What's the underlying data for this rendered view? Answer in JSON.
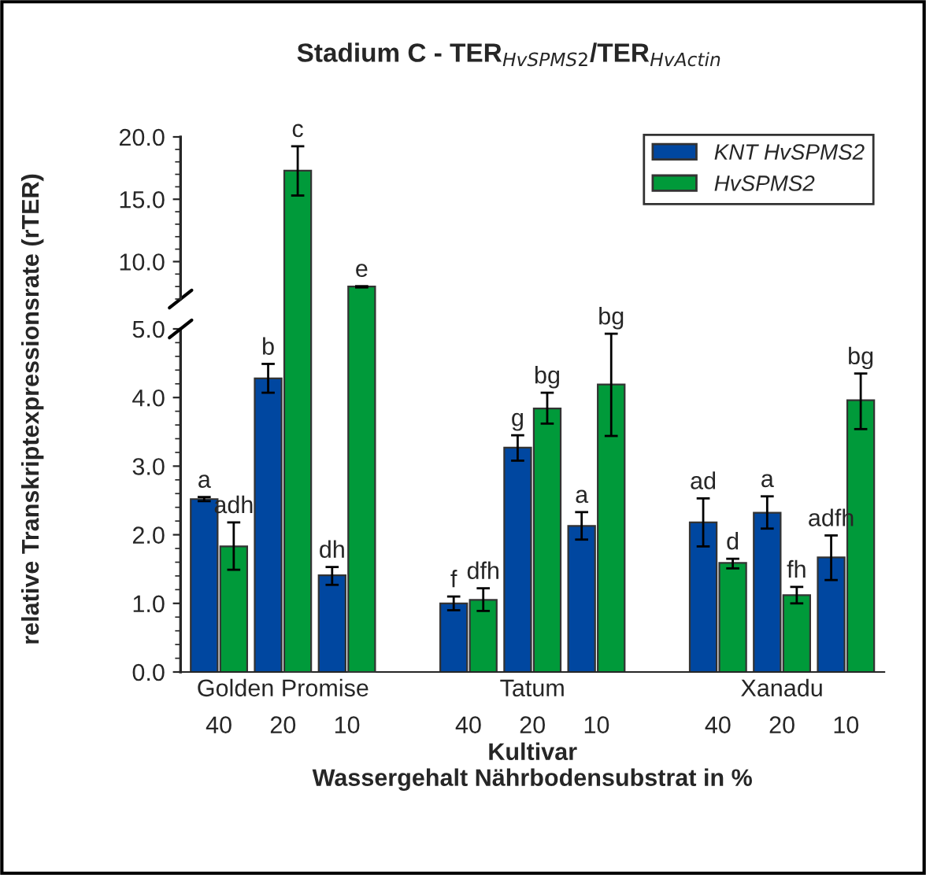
{
  "chart_data": [
    {
      "type": "bar",
      "title": "Stadium C - TER$_{HvSPMS2}$/TER$_{HvActin}$",
      "categories": [
        "40",
        "20",
        "10",
        "40",
        "20",
        "10",
        "40",
        "20",
        "10"
      ],
      "ylim": [
        7,
        20
      ],
      "yticks": [
        {
          "value": 10,
          "label": "10.0"
        },
        {
          "value": 15,
          "label": "15.0"
        },
        {
          "value": 20,
          "label": "20.0"
        }
      ],
      "tick_labels": "y",
      "legend": "top right",
      "grid": false,
      "series": [
        {
          "name": "KNT HvSPMS2",
          "color": "#0047a0",
          "values": [
            null,
            null,
            null,
            null,
            null,
            null,
            null,
            null,
            null
          ],
          "errors": [
            null,
            null,
            null,
            null,
            null,
            null,
            null,
            null,
            null
          ]
        },
        {
          "name": "HvSPMS2",
          "color": "#009a3a",
          "values": [
            null,
            17.3,
            8.0,
            null,
            null,
            null,
            null,
            null,
            null
          ],
          "errors": [
            null,
            [
              15.3,
              19.25
            ],
            [
              7.93,
              8.03
            ],
            null,
            null,
            null,
            null,
            null,
            null
          ],
          "value_labels": [
            null,
            "c",
            "e",
            null,
            null,
            null,
            null,
            null,
            null
          ]
        }
      ]
    },
    {
      "type": "bar",
      "ylabel": "relative Transkriptexpressionsrate (rTER)",
      "xlabel": "Kultivar\nWassergehalt Nährbodensubstrat in %",
      "categories": [
        "40",
        "20",
        "10",
        "40",
        "20",
        "10",
        "40",
        "20",
        "10"
      ],
      "ylim": [
        0,
        5
      ],
      "yticks": [
        {
          "value": 0,
          "label": "0.0"
        },
        {
          "value": 1,
          "label": "1.0"
        },
        {
          "value": 2,
          "label": "2.0"
        },
        {
          "value": 3,
          "label": "3.0"
        },
        {
          "value": 4,
          "label": "4.0"
        },
        {
          "value": 5,
          "label": "5.0"
        }
      ],
      "grid": false,
      "legend": false,
      "annotations": [
        "Golden Promise",
        "Tatum",
        "Xanadu"
      ],
      "series": [
        {
          "color": "#0047a0",
          "values": [
            2.52,
            4.28,
            1.41,
            1.0,
            3.27,
            2.13,
            2.18,
            2.32,
            1.67
          ],
          "errors": [
            [
              2.49,
              2.55
            ],
            [
              4.07,
              4.49
            ],
            [
              1.27,
              1.53
            ],
            [
              0.9,
              1.1
            ],
            [
              3.08,
              3.45
            ],
            [
              1.93,
              2.33
            ],
            [
              1.83,
              2.53
            ],
            [
              2.09,
              2.56
            ],
            [
              1.34,
              1.99
            ]
          ],
          "value_labels": [
            "a",
            "b",
            "dh",
            "f",
            "g",
            "a",
            "ad",
            "a",
            "adfh"
          ]
        },
        {
          "color": "#009a3a",
          "values": [
            1.83,
            null,
            null,
            1.05,
            3.84,
            4.19,
            1.59,
            1.12,
            3.96
          ],
          "errors": [
            [
              1.49,
              2.18
            ],
            null,
            null,
            [
              0.89,
              1.22
            ],
            [
              3.62,
              4.07
            ],
            [
              3.44,
              4.93
            ],
            [
              1.51,
              1.65
            ],
            [
              1.0,
              1.24
            ],
            [
              3.54,
              4.35
            ]
          ],
          "value_labels": [
            "adh",
            null,
            null,
            "dfh",
            "bg",
            "bg",
            "d",
            "fh",
            "bg"
          ]
        }
      ]
    }
  ]
}
